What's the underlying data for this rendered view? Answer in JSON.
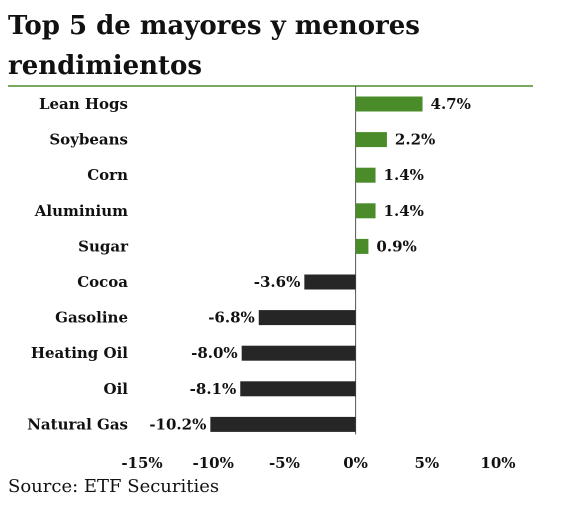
{
  "chart_data": {
    "type": "bar",
    "orientation": "horizontal",
    "title": "Top 5 de mayores y menores rendimientos",
    "categories": [
      "Lean Hogs",
      "Soybeans",
      "Corn",
      "Aluminium",
      "Sugar",
      "Cocoa",
      "Gasoline",
      "Heating Oil",
      "Oil",
      "Natural Gas"
    ],
    "values": [
      4.7,
      2.2,
      1.4,
      1.4,
      0.9,
      -3.6,
      -6.8,
      -8.0,
      -8.1,
      -10.2
    ],
    "value_labels": [
      "4.7%",
      "2.2%",
      "1.4%",
      "1.4%",
      "0.9%",
      "-3.6%",
      "-6.8%",
      "-8.0%",
      "-8.1%",
      "-10.2%"
    ],
    "xlim": [
      -15,
      10
    ],
    "xticks": [
      -15,
      -10,
      -5,
      0,
      5,
      10
    ],
    "xtick_labels": [
      "-15%",
      "-10%",
      "-5%",
      "0%",
      "5%",
      "10%"
    ],
    "grid": false,
    "legend": "none",
    "colors": {
      "positive": "#4a8c2a",
      "negative": "#262626",
      "rule": "#4a8c2a"
    }
  },
  "source": "Source: ETF Securities"
}
